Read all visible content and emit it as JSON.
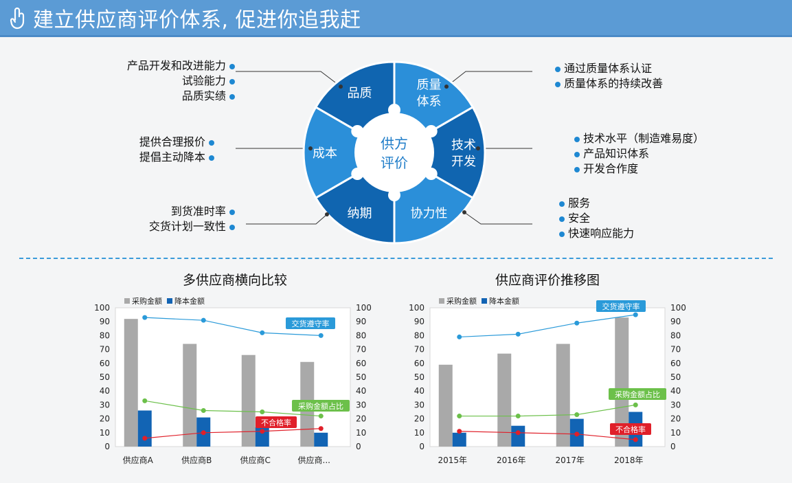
{
  "header": {
    "title": "建立供应商评价体系, 促进你追我赶"
  },
  "colors": {
    "header_bg": "#5b9bd5",
    "wheel_dark": "#1065b0",
    "wheel_light": "#2b8fd9",
    "bar_gray": "#a9a9a9",
    "bar_blue": "#1264b4",
    "line_blue": "#2a9ad9",
    "line_green": "#6cc04a",
    "line_red": "#e0202a"
  },
  "wheel": {
    "center": [
      "供方",
      "评价"
    ],
    "segments": [
      {
        "label": [
          "品质"
        ]
      },
      {
        "label": [
          "质量",
          "体系"
        ]
      },
      {
        "label": [
          "技术",
          "开发"
        ]
      },
      {
        "label": [
          "协力性"
        ]
      },
      {
        "label": [
          "纳期"
        ]
      },
      {
        "label": [
          "成本"
        ]
      }
    ]
  },
  "annotations": {
    "quality": [
      "产品开发和改进能力",
      "试验能力",
      "品质实绩"
    ],
    "system": [
      "通过质量体系认证",
      "质量体系的持续改善"
    ],
    "tech": [
      "技术水平（制造难易度）",
      "产品知识体系",
      "开发合作度"
    ],
    "coop": [
      "服务",
      "安全",
      "快速响应能力"
    ],
    "cost": [
      "提供合理报价",
      "提倡主动降本"
    ],
    "delivery": [
      "到货准时率",
      "交货计划一致性"
    ]
  },
  "chart_data": [
    {
      "type": "bar",
      "title": "多供应商横向比较",
      "categories": [
        "供应商A",
        "供应商B",
        "供应商C",
        "供应商..."
      ],
      "legend": [
        "采购金额",
        "降本金额"
      ],
      "ylim": [
        0,
        100
      ],
      "ticks": [
        0,
        10,
        20,
        30,
        40,
        50,
        60,
        70,
        80,
        90,
        100
      ],
      "series": [
        {
          "name": "采购金额",
          "kind": "bar",
          "values": [
            92,
            74,
            66,
            61
          ]
        },
        {
          "name": "降本金额",
          "kind": "bar",
          "values": [
            26,
            21,
            14,
            10
          ]
        },
        {
          "name": "交货遵守率",
          "kind": "line",
          "values": [
            93,
            91,
            82,
            80
          ]
        },
        {
          "name": "采购金额占比",
          "kind": "line",
          "values": [
            33,
            26,
            25,
            22
          ]
        },
        {
          "name": "不合格率",
          "kind": "line",
          "values": [
            6,
            10,
            11,
            13
          ]
        }
      ]
    },
    {
      "type": "bar",
      "title": "供应商评价推移图",
      "categories": [
        "2015年",
        "2016年",
        "2017年",
        "2018年"
      ],
      "legend": [
        "采购金额",
        "降本金额"
      ],
      "ylim": [
        0,
        100
      ],
      "ticks": [
        0,
        10,
        20,
        30,
        40,
        50,
        60,
        70,
        80,
        90,
        100
      ],
      "series": [
        {
          "name": "采购金额",
          "kind": "bar",
          "values": [
            59,
            67,
            74,
            93
          ]
        },
        {
          "name": "降本金额",
          "kind": "bar",
          "values": [
            10,
            15,
            20,
            25
          ]
        },
        {
          "name": "交货遵守率",
          "kind": "line",
          "values": [
            79,
            81,
            89,
            95
          ]
        },
        {
          "name": "采购金额占比",
          "kind": "line",
          "values": [
            22,
            22,
            23,
            30
          ]
        },
        {
          "name": "不合格率",
          "kind": "line",
          "values": [
            11,
            10,
            9,
            5
          ]
        }
      ]
    }
  ]
}
